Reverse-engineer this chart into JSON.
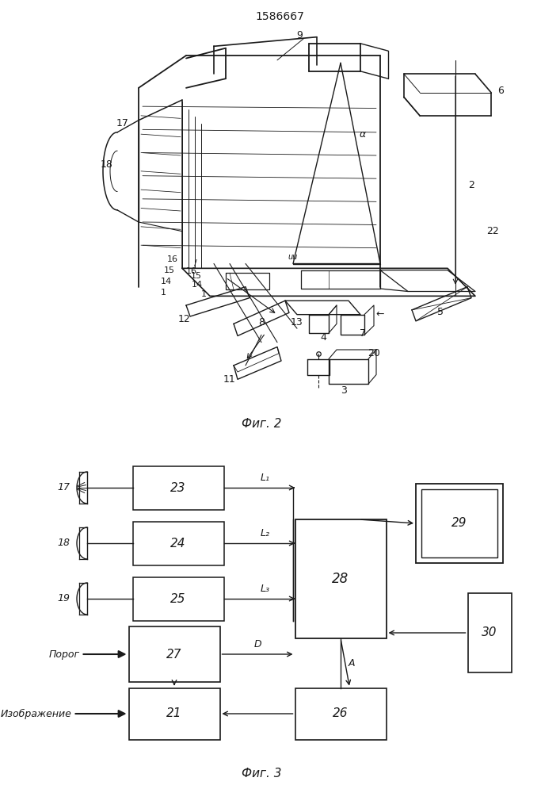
{
  "title": "1586667",
  "fig2_caption": "Фиг. 2",
  "fig3_caption": "Фиг. 3",
  "bg_color": "#ffffff",
  "line_color": "#1a1a1a",
  "fig3": {
    "L_labels": [
      "L₁",
      "L₂",
      "L₃"
    ],
    "label_D": "D",
    "label_A": "A",
    "label_porog": "Порог",
    "label_izobr": "Изображение"
  }
}
